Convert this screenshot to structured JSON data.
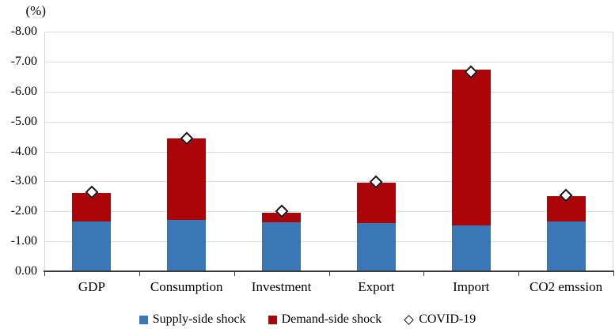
{
  "chart_data": {
    "type": "bar",
    "subtype": "stacked",
    "title": "",
    "unit_label": "(%)",
    "grid": true,
    "legend_position": "bottom",
    "categories": [
      "GDP",
      "Consumption",
      "Investment",
      "Export",
      "Import",
      "CO2 emssion"
    ],
    "series": [
      {
        "name": "Supply-side shock",
        "color": "#3b76b6",
        "values": [
          -1.67,
          -1.72,
          -1.65,
          -1.6,
          -1.52,
          -1.66
        ]
      },
      {
        "name": "Demand-side shock",
        "color": "#ab0509",
        "values": [
          -0.95,
          -2.71,
          -0.31,
          -1.36,
          -5.21,
          -0.84
        ]
      }
    ],
    "markers": {
      "name": "COVID-19",
      "shape": "diamond",
      "fill": "#ffffff",
      "border": "#141414",
      "values": [
        -2.63,
        -4.43,
        -2.0,
        -2.98,
        -6.65,
        -2.53
      ]
    },
    "y_axis": {
      "min": -8,
      "max": 0,
      "step": 1,
      "ticks": [
        {
          "label": "0.00",
          "value": 0
        },
        {
          "label": "-1.00",
          "value": -1
        },
        {
          "label": "-2.00",
          "value": -2
        },
        {
          "label": "-3.00",
          "value": -3
        },
        {
          "label": "-4.00",
          "value": -4
        },
        {
          "label": "-5.00",
          "value": -5
        },
        {
          "label": "-6.00",
          "value": -6
        },
        {
          "label": "-7.00",
          "value": -7
        },
        {
          "label": "-8.00",
          "value": -8
        }
      ]
    }
  }
}
